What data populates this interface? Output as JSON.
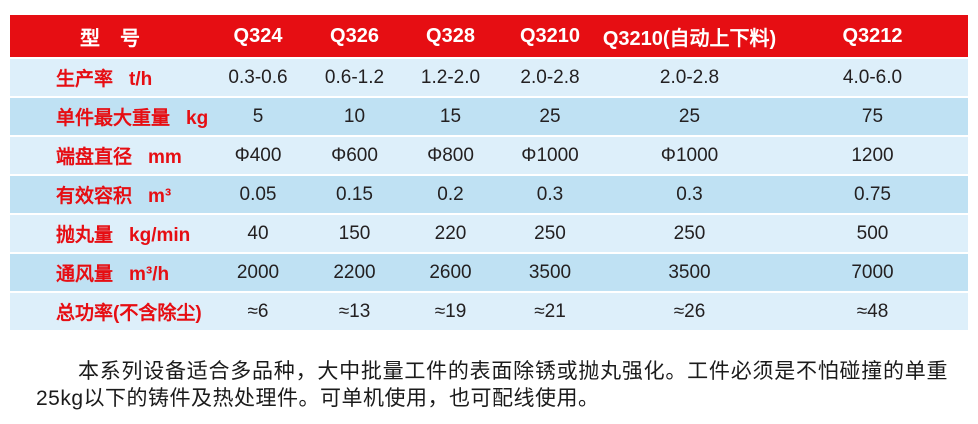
{
  "table": {
    "header": {
      "label": "型　号",
      "models": [
        "Q324",
        "Q326",
        "Q328",
        "Q3210",
        "Q3210(自动上下料)",
        "Q3212"
      ]
    },
    "rows": [
      {
        "name": "生产率",
        "unit": "t/h",
        "values": [
          "0.3-0.6",
          "0.6-1.2",
          "1.2-2.0",
          "2.0-2.8",
          "2.0-2.8",
          "4.0-6.0"
        ]
      },
      {
        "name": "单件最大重量",
        "unit": "kg",
        "values": [
          "5",
          "10",
          "15",
          "25",
          "25",
          "75"
        ]
      },
      {
        "name": "端盘直径",
        "unit": "mm",
        "values": [
          "Φ400",
          "Φ600",
          "Φ800",
          "Φ1000",
          "Φ1000",
          "1200"
        ]
      },
      {
        "name": "有效容积",
        "unit": "m³",
        "values": [
          "0.05",
          "0.15",
          "0.2",
          "0.3",
          "0.3",
          "0.75"
        ]
      },
      {
        "name": "抛丸量",
        "unit": "kg/min",
        "values": [
          "40",
          "150",
          "220",
          "250",
          "250",
          "500"
        ]
      },
      {
        "name": "通风量",
        "unit": "m³/h",
        "values": [
          "2000",
          "2200",
          "2600",
          "3500",
          "3500",
          "7000"
        ]
      },
      {
        "name": "总功率(不含除尘)",
        "unit": "",
        "values": [
          "≈6",
          "≈13",
          "≈19",
          "≈21",
          "≈26",
          "≈48"
        ]
      }
    ]
  },
  "description": "本系列设备适合多品种，大中批量工件的表面除锈或抛丸强化。工件必须是不怕碰撞的单重25kg以下的铸件及热处理件。可单机使用，也可配线使用。",
  "colors": {
    "header_red": "#e60e13",
    "header_text": "#ffffff",
    "label_red": "#e60e13",
    "row_light": "#ddeffa",
    "row_dark": "#bfe1f3",
    "value_text": "#232021",
    "text_dark": "#1b1b1b"
  }
}
